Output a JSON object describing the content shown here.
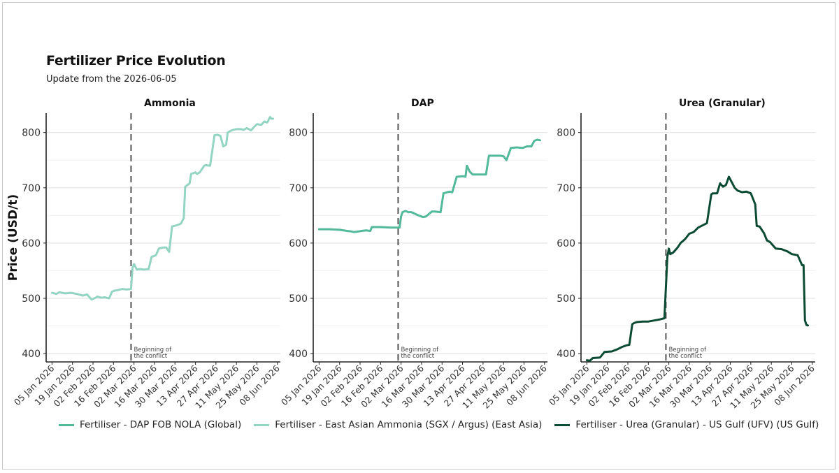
{
  "colors": {
    "dap": "#52b99a",
    "ammonia": "#93d5c2",
    "urea": "#0b4a33",
    "conflict_line": "#555555",
    "grid": "#e6e6e6",
    "axis": "#222222"
  },
  "chart_data": {
    "type": "line",
    "title": "Fertilizer Price Evolution",
    "subtitle": "Update from the 2026-06-05",
    "ylabel": "Price (USD/t)",
    "xlabel": "",
    "ylim": [
      385,
      835
    ],
    "yticks": [
      400,
      500,
      600,
      700,
      800
    ],
    "xlim": [
      "2026-01-01",
      "2026-06-10"
    ],
    "x_ticks": [
      "2026-01-05",
      "2026-01-19",
      "2026-02-02",
      "2026-02-16",
      "2026-03-02",
      "2026-03-16",
      "2026-03-30",
      "2026-04-13",
      "2026-04-27",
      "2026-05-11",
      "2026-05-25",
      "2026-06-08"
    ],
    "x_tick_labels": [
      "05 Jan 2026",
      "19 Jan 2026",
      "02 Feb 2026",
      "16 Feb 2026",
      "02 Mar 2026",
      "16 Mar 2026",
      "30 Mar 2026",
      "13 Apr 2026",
      "27 Apr 2026",
      "11 May 2026",
      "25 May 2026",
      "08 Jun 2026"
    ],
    "grid": true,
    "legend_position": "bottom",
    "annotation": {
      "date": "2026-02-28",
      "text_lines": [
        "Beginning of",
        "the conflict"
      ]
    },
    "legend": [
      {
        "label": "Fertiliser - DAP FOB NOLA (Global)",
        "color": "#52b99a"
      },
      {
        "label": "Fertiliser - East Asian Ammonia (SGX / Argus) (East Asia)",
        "color": "#93d5c2"
      },
      {
        "label": "Fertiliser - Urea (Granular) - US Gulf (UFV) (US Gulf)",
        "color": "#0b4a33"
      }
    ],
    "panels": [
      {
        "title": "Ammonia",
        "series": "Fertiliser - East Asian Ammonia (SGX / Argus) (East Asia)",
        "color": "#93d5c2",
        "x": [
          "2026-01-05",
          "2026-01-08",
          "2026-01-10",
          "2026-01-14",
          "2026-01-18",
          "2026-01-22",
          "2026-01-26",
          "2026-01-29",
          "2026-02-01",
          "2026-02-03",
          "2026-02-05",
          "2026-02-08",
          "2026-02-10",
          "2026-02-13",
          "2026-02-15",
          "2026-02-17",
          "2026-02-19",
          "2026-02-22",
          "2026-02-25",
          "2026-02-28",
          "2026-03-01",
          "2026-03-02",
          "2026-03-04",
          "2026-03-06",
          "2026-03-09",
          "2026-03-12",
          "2026-03-14",
          "2026-03-17",
          "2026-03-19",
          "2026-03-22",
          "2026-03-24",
          "2026-03-26",
          "2026-03-28",
          "2026-03-31",
          "2026-04-03",
          "2026-04-05",
          "2026-04-06",
          "2026-04-09",
          "2026-04-10",
          "2026-04-13",
          "2026-04-14",
          "2026-04-16",
          "2026-04-19",
          "2026-04-20",
          "2026-04-23",
          "2026-04-26",
          "2026-04-28",
          "2026-04-30",
          "2026-05-02",
          "2026-05-04",
          "2026-05-05",
          "2026-05-07",
          "2026-05-09",
          "2026-05-11",
          "2026-05-14",
          "2026-05-16",
          "2026-05-18",
          "2026-05-21",
          "2026-05-23",
          "2026-05-25",
          "2026-05-28",
          "2026-05-30",
          "2026-06-01",
          "2026-06-03",
          "2026-06-04",
          "2026-06-05"
        ],
        "values": [
          510,
          508,
          511,
          509,
          510,
          508,
          505,
          507,
          498,
          500,
          503,
          501,
          502,
          500,
          512,
          514,
          515,
          517,
          516,
          517,
          555,
          562,
          552,
          553,
          552,
          553,
          575,
          578,
          590,
          592,
          592,
          584,
          630,
          632,
          635,
          645,
          702,
          708,
          725,
          728,
          725,
          728,
          740,
          741,
          740,
          795,
          796,
          794,
          775,
          778,
          800,
          803,
          805,
          806,
          806,
          805,
          808,
          804,
          810,
          815,
          814,
          820,
          818,
          828,
          825,
          825
        ]
      },
      {
        "title": "DAP",
        "series": "Fertiliser - DAP FOB NOLA (Global)",
        "color": "#52b99a",
        "x": [
          "2026-01-05",
          "2026-01-12",
          "2026-01-19",
          "2026-01-24",
          "2026-01-27",
          "2026-01-29",
          "2026-02-01",
          "2026-02-03",
          "2026-02-06",
          "2026-02-09",
          "2026-02-10",
          "2026-02-16",
          "2026-02-23",
          "2026-03-01",
          "2026-03-02",
          "2026-03-03",
          "2026-03-05",
          "2026-03-07",
          "2026-03-09",
          "2026-03-14",
          "2026-03-17",
          "2026-03-19",
          "2026-03-23",
          "2026-03-25",
          "2026-03-29",
          "2026-03-31",
          "2026-04-04",
          "2026-04-06",
          "2026-04-09",
          "2026-04-13",
          "2026-04-15",
          "2026-04-16",
          "2026-04-18",
          "2026-04-20",
          "2026-04-25",
          "2026-04-29",
          "2026-05-01",
          "2026-05-05",
          "2026-05-09",
          "2026-05-11",
          "2026-05-13",
          "2026-05-16",
          "2026-05-20",
          "2026-05-24",
          "2026-05-27",
          "2026-05-30",
          "2026-06-01",
          "2026-06-03",
          "2026-06-05"
        ],
        "values": [
          625,
          625,
          624,
          622,
          621,
          620,
          621,
          622,
          623,
          622,
          629,
          629,
          628,
          628,
          648,
          656,
          658,
          656,
          656,
          650,
          647,
          648,
          657,
          657,
          656,
          690,
          693,
          692,
          720,
          721,
          720,
          740,
          729,
          724,
          724,
          724,
          758,
          758,
          758,
          757,
          750,
          772,
          773,
          772,
          775,
          775,
          785,
          787,
          786
        ]
      },
      {
        "title": "Urea (Granular)",
        "series": "Fertiliser - Urea (Granular) - US Gulf (UFV) (US Gulf)",
        "color": "#0b4a33",
        "x": [
          "2026-01-05",
          "2026-01-07",
          "2026-01-09",
          "2026-01-14",
          "2026-01-17",
          "2026-01-22",
          "2026-01-26",
          "2026-01-29",
          "2026-02-01",
          "2026-02-03",
          "2026-02-05",
          "2026-02-06",
          "2026-02-08",
          "2026-02-12",
          "2026-02-16",
          "2026-02-20",
          "2026-02-24",
          "2026-02-27",
          "2026-03-01",
          "2026-03-02",
          "2026-03-03",
          "2026-03-05",
          "2026-03-08",
          "2026-03-10",
          "2026-03-13",
          "2026-03-16",
          "2026-03-19",
          "2026-03-22",
          "2026-03-25",
          "2026-03-28",
          "2026-03-31",
          "2026-04-01",
          "2026-04-04",
          "2026-04-06",
          "2026-04-08",
          "2026-04-10",
          "2026-04-12",
          "2026-04-14",
          "2026-04-16",
          "2026-04-18",
          "2026-04-21",
          "2026-04-24",
          "2026-04-27",
          "2026-04-30",
          "2026-05-01",
          "2026-05-03",
          "2026-05-06",
          "2026-05-08",
          "2026-05-10",
          "2026-05-14",
          "2026-05-18",
          "2026-05-22",
          "2026-05-25",
          "2026-05-29",
          "2026-06-01",
          "2026-06-02",
          "2026-06-03",
          "2026-06-04",
          "2026-06-05"
        ],
        "values": [
          388,
          387,
          392,
          393,
          403,
          404,
          408,
          412,
          415,
          416,
          453,
          455,
          457,
          458,
          458,
          460,
          462,
          464,
          575,
          590,
          580,
          583,
          592,
          600,
          607,
          617,
          620,
          628,
          632,
          636,
          688,
          690,
          690,
          708,
          702,
          705,
          720,
          710,
          700,
          695,
          692,
          693,
          690,
          670,
          631,
          630,
          618,
          605,
          602,
          590,
          589,
          585,
          580,
          578,
          560,
          560,
          460,
          452,
          451
        ]
      }
    ]
  }
}
